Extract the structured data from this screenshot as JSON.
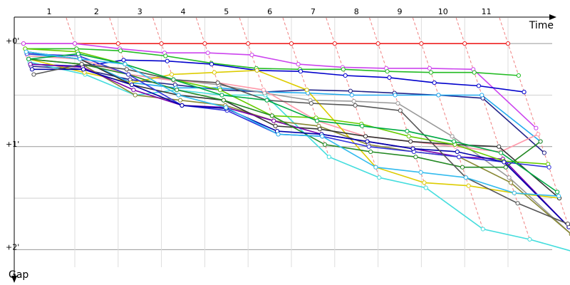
{
  "chart_data": {
    "type": "line",
    "x_label": "Time",
    "y_label": "Gap",
    "categories": [
      null,
      "1",
      "2",
      "3",
      "4",
      "5",
      "6",
      "7",
      "8",
      "9",
      "10",
      "11"
    ],
    "ylim": [
      -0.25,
      2.17
    ],
    "yticks": [
      {
        "value": 0,
        "label": "+0'"
      },
      {
        "value": 1,
        "label": "+1'"
      },
      {
        "value": 2,
        "label": "+2'"
      }
    ],
    "minor_yticks": [
      0.5,
      1.5
    ],
    "grid": true,
    "series": [
      {
        "color": "#ee2222",
        "values": [
          0,
          0,
          0,
          0,
          0,
          0,
          0,
          0,
          0,
          0,
          0,
          0
        ]
      },
      {
        "color": "#cc44ee",
        "values": [
          0,
          0,
          0.05,
          0.09,
          0.09,
          0.11,
          0.2,
          0.23,
          0.24,
          0.24,
          0.25,
          0.82
        ]
      },
      {
        "color": "#22bb22",
        "values": [
          0.05,
          0.05,
          0.07,
          0.12,
          0.19,
          0.24,
          0.25,
          0.25,
          0.27,
          0.28,
          0.28,
          0.31
        ]
      },
      {
        "color": "#0000cc",
        "values": [
          0.2,
          0.22,
          0.16,
          0.17,
          0.2,
          0.26,
          0.27,
          0.31,
          0.33,
          0.38,
          0.41,
          0.47
        ]
      },
      {
        "color": "#222288",
        "values": [
          0.22,
          0.25,
          0.35,
          0.4,
          0.45,
          0.47,
          0.45,
          0.46,
          0.48,
          0.5,
          0.53,
          1.06
        ]
      },
      {
        "color": "#22aaee",
        "values": [
          0.1,
          0.15,
          0.38,
          0.43,
          0.43,
          0.47,
          0.48,
          0.5,
          0.5,
          0.5,
          0.5,
          0.95
        ]
      },
      {
        "color": "#44dddd",
        "values": [
          0.18,
          0.3,
          0.5,
          0.45,
          0.5,
          0.5,
          1.1,
          1.3,
          1.4,
          1.8,
          1.9,
          2.03
        ]
      },
      {
        "color": "#999999",
        "values": [
          0.1,
          0.12,
          0.3,
          0.35,
          0.4,
          0.48,
          0.55,
          0.56,
          0.58,
          0.9,
          1.3,
          1.85
        ]
      },
      {
        "color": "#ff99aa",
        "values": [
          0.12,
          0.15,
          0.3,
          0.36,
          0.38,
          0.45,
          0.75,
          0.9,
          0.95,
          1.0,
          1.05,
          0.88
        ]
      },
      {
        "color": "#ddcc00",
        "values": [
          0.15,
          0.28,
          0.38,
          0.3,
          0.28,
          0.26,
          0.45,
          1.2,
          1.35,
          1.38,
          1.45,
          1.5
        ]
      },
      {
        "color": "#888833",
        "values": [
          0.15,
          0.2,
          0.5,
          0.55,
          0.6,
          0.75,
          0.8,
          0.98,
          1.05,
          1.1,
          1.35,
          1.85
        ]
      },
      {
        "color": "#333333",
        "values": [
          0.08,
          0.15,
          0.4,
          0.5,
          0.55,
          0.8,
          0.83,
          0.9,
          0.95,
          0.98,
          1.0,
          1.5
        ]
      },
      {
        "color": "#7700aa",
        "values": [
          0.2,
          0.23,
          0.45,
          0.6,
          0.62,
          0.75,
          0.88,
          0.95,
          1.02,
          1.1,
          1.12,
          1.78
        ]
      },
      {
        "color": "#66cc00",
        "values": [
          0.05,
          0.08,
          0.2,
          0.35,
          0.45,
          0.7,
          0.72,
          0.78,
          0.9,
          0.98,
          1.14,
          1.17
        ]
      },
      {
        "color": "#228822",
        "values": [
          0.15,
          0.2,
          0.3,
          0.45,
          0.55,
          0.7,
          0.98,
          1.05,
          1.1,
          1.2,
          1.2,
          0.95
        ]
      },
      {
        "color": "#3333dd",
        "values": [
          0.1,
          0.12,
          0.3,
          0.6,
          0.65,
          0.88,
          0.9,
          1.0,
          1.05,
          1.1,
          1.15,
          1.2
        ]
      },
      {
        "color": "#0000aa",
        "values": [
          0.25,
          0.25,
          0.4,
          0.6,
          0.63,
          0.85,
          0.88,
          0.95,
          1.02,
          1.05,
          1.15,
          1.78
        ]
      },
      {
        "color": "#555555",
        "values": [
          0.3,
          0.2,
          0.25,
          0.35,
          0.38,
          0.55,
          0.58,
          0.6,
          0.65,
          1.3,
          1.55,
          1.75
        ]
      },
      {
        "color": "#00aa44",
        "values": [
          0.15,
          0.1,
          0.2,
          0.35,
          0.5,
          0.55,
          0.75,
          0.8,
          0.85,
          0.95,
          1.06,
          1.44
        ]
      },
      {
        "color": "#33bbee",
        "values": [
          0.08,
          0.15,
          0.2,
          0.5,
          0.62,
          0.88,
          0.9,
          1.2,
          1.25,
          1.3,
          1.45,
          1.48
        ]
      }
    ]
  }
}
